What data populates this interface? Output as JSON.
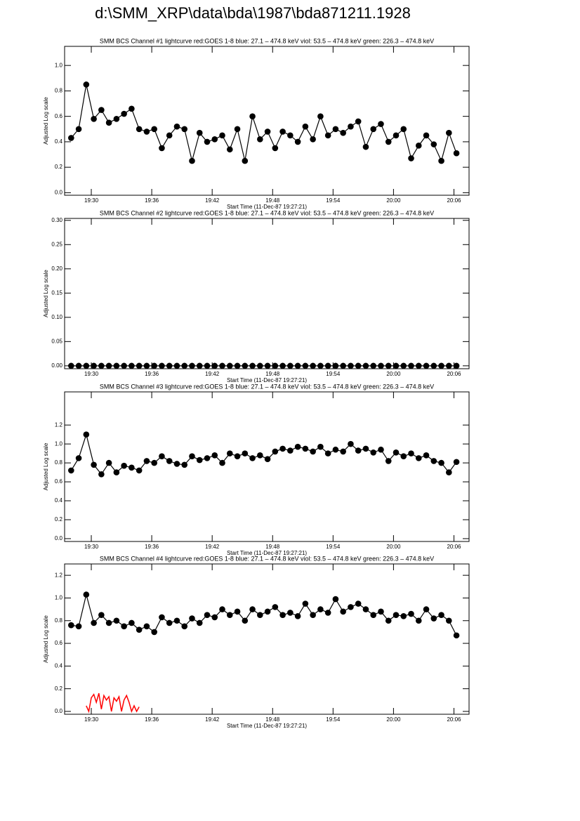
{
  "page_title": "d:\\SMM_XRP\\data\\bda\\1987\\bda871211.1928",
  "chart_data": [
    {
      "type": "line",
      "title": "SMM BCS Channel #1 lightcurve  red:GOES 1-8  blue: 27.1 – 474.8 keV  viol: 53.5 – 474.8 keV  green: 226.3 – 474.8 keV",
      "x_label": "Start Time (11-Dec-87 19:27:21)",
      "y_label": "Adjusted Log scale",
      "xlim": [
        27.35,
        67.5
      ],
      "xticks": [
        {
          "value": 30,
          "label": "19:30"
        },
        {
          "value": 36,
          "label": "19:36"
        },
        {
          "value": 42,
          "label": "19:42"
        },
        {
          "value": 48,
          "label": "19:48"
        },
        {
          "value": 54,
          "label": "19:54"
        },
        {
          "value": 60,
          "label": "20:00"
        },
        {
          "value": 66,
          "label": "20:06"
        }
      ],
      "ylim": [
        -0.02,
        1.15
      ],
      "yticks": [
        {
          "value": 0,
          "label": "0.0"
        },
        {
          "value": 0.2,
          "label": "0.2"
        },
        {
          "value": 0.4,
          "label": "0.4"
        },
        {
          "value": 0.6,
          "label": "0.6"
        },
        {
          "value": 0.8,
          "label": "0.8"
        },
        {
          "value": 1,
          "label": "1.0"
        }
      ],
      "x": [
        28,
        28.75,
        29.5,
        30.25,
        31,
        31.75,
        32.5,
        33.25,
        34,
        34.75,
        35.5,
        36.25,
        37,
        37.75,
        38.5,
        39.25,
        40,
        40.75,
        41.5,
        42.25,
        43,
        43.75,
        44.5,
        45.25,
        46,
        46.75,
        47.5,
        48.25,
        49,
        49.75,
        50.5,
        51.25,
        52,
        52.75,
        53.5,
        54.25,
        55,
        55.75,
        56.5,
        57.25,
        58,
        58.75,
        59.5,
        60.25,
        61,
        61.75,
        62.5,
        63.25,
        64,
        64.75,
        65.5,
        66.25
      ],
      "series": [
        {
          "color": "#000000",
          "values": [
            0.43,
            0.5,
            0.85,
            0.58,
            0.65,
            0.55,
            0.58,
            0.62,
            0.66,
            0.5,
            0.48,
            0.5,
            0.35,
            0.45,
            0.52,
            0.5,
            0.25,
            0.47,
            0.4,
            0.42,
            0.45,
            0.34,
            0.5,
            0.25,
            0.6,
            0.42,
            0.48,
            0.35,
            0.48,
            0.45,
            0.4,
            0.52,
            0.42,
            0.6,
            0.45,
            0.5,
            0.47,
            0.52,
            0.56,
            0.36,
            0.5,
            0.54,
            0.4,
            0.45,
            0.5,
            0.27,
            0.37,
            0.45,
            0.38,
            0.25,
            0.47,
            0.31
          ]
        }
      ]
    },
    {
      "type": "line",
      "title": "SMM BCS Channel #2 lightcurve  red:GOES 1-8  blue: 27.1 – 474.8 keV  viol: 53.5 – 474.8 keV  green: 226.3 – 474.8 keV",
      "x_label": "Start Time (11-Dec-87 19:27:21)",
      "y_label": "Adjusted Log scale",
      "xlim": [
        27.35,
        67.5
      ],
      "xticks": [
        {
          "value": 30,
          "label": "19:30"
        },
        {
          "value": 36,
          "label": "19:36"
        },
        {
          "value": 42,
          "label": "19:42"
        },
        {
          "value": 48,
          "label": "19:48"
        },
        {
          "value": 54,
          "label": "19:54"
        },
        {
          "value": 60,
          "label": "20:00"
        },
        {
          "value": 66,
          "label": "20:06"
        }
      ],
      "ylim": [
        -0.006,
        0.304
      ],
      "yticks": [
        {
          "value": 0,
          "label": "0.00"
        },
        {
          "value": 0.05,
          "label": "0.05"
        },
        {
          "value": 0.1,
          "label": "0.10"
        },
        {
          "value": 0.15,
          "label": "0.15"
        },
        {
          "value": 0.2,
          "label": "0.20"
        },
        {
          "value": 0.25,
          "label": "0.25"
        },
        {
          "value": 0.3,
          "label": "0.30"
        }
      ],
      "x": [
        28,
        28.75,
        29.5,
        30.25,
        31,
        31.75,
        32.5,
        33.25,
        34,
        34.75,
        35.5,
        36.25,
        37,
        37.75,
        38.5,
        39.25,
        40,
        40.75,
        41.5,
        42.25,
        43,
        43.75,
        44.5,
        45.25,
        46,
        46.75,
        47.5,
        48.25,
        49,
        49.75,
        50.5,
        51.25,
        52,
        52.75,
        53.5,
        54.25,
        55,
        55.75,
        56.5,
        57.25,
        58,
        58.75,
        59.5,
        60.25,
        61,
        61.75,
        62.5,
        63.25,
        64,
        64.75,
        65.5,
        66.25
      ],
      "series": [
        {
          "color": "#000000",
          "values": [
            0,
            0,
            0,
            0,
            0,
            0,
            0,
            0,
            0,
            0,
            0,
            0,
            0,
            0,
            0,
            0,
            0,
            0,
            0,
            0,
            0,
            0,
            0,
            0,
            0,
            0,
            0,
            0,
            0,
            0,
            0,
            0,
            0,
            0,
            0,
            0,
            0,
            0,
            0,
            0,
            0,
            0,
            0,
            0,
            0,
            0,
            0,
            0,
            0,
            0,
            0,
            0
          ]
        }
      ]
    },
    {
      "type": "line",
      "title": "SMM BCS Channel #3 lightcurve  red:GOES 1-8  blue: 27.1 – 474.8 keV  viol: 53.5 – 474.8 keV  green: 226.3 – 474.8 keV",
      "x_label": "Start Time (11-Dec-87 19:27:21)",
      "y_label": "Adjusted Log scale",
      "xlim": [
        27.35,
        67.5
      ],
      "xticks": [
        {
          "value": 30,
          "label": "19:30"
        },
        {
          "value": 36,
          "label": "19:36"
        },
        {
          "value": 42,
          "label": "19:42"
        },
        {
          "value": 48,
          "label": "19:48"
        },
        {
          "value": 54,
          "label": "19:54"
        },
        {
          "value": 60,
          "label": "20:00"
        },
        {
          "value": 66,
          "label": "20:06"
        }
      ],
      "ylim": [
        -0.03,
        1.55
      ],
      "yticks": [
        {
          "value": 0,
          "label": "0.0"
        },
        {
          "value": 0.2,
          "label": "0.2"
        },
        {
          "value": 0.4,
          "label": "0.4"
        },
        {
          "value": 0.6,
          "label": "0.6"
        },
        {
          "value": 0.8,
          "label": "0.8"
        },
        {
          "value": 1,
          "label": "1.0"
        },
        {
          "value": 1.2,
          "label": "1.2"
        }
      ],
      "x": [
        28,
        28.75,
        29.5,
        30.25,
        31,
        31.75,
        32.5,
        33.25,
        34,
        34.75,
        35.5,
        36.25,
        37,
        37.75,
        38.5,
        39.25,
        40,
        40.75,
        41.5,
        42.25,
        43,
        43.75,
        44.5,
        45.25,
        46,
        46.75,
        47.5,
        48.25,
        49,
        49.75,
        50.5,
        51.25,
        52,
        52.75,
        53.5,
        54.25,
        55,
        55.75,
        56.5,
        57.25,
        58,
        58.75,
        59.5,
        60.25,
        61,
        61.75,
        62.5,
        63.25,
        64,
        64.75,
        65.5,
        66.25
      ],
      "series": [
        {
          "color": "#000000",
          "values": [
            0.72,
            0.85,
            1.1,
            0.78,
            0.68,
            0.8,
            0.7,
            0.77,
            0.75,
            0.72,
            0.82,
            0.8,
            0.87,
            0.82,
            0.79,
            0.78,
            0.87,
            0.83,
            0.85,
            0.88,
            0.8,
            0.9,
            0.87,
            0.9,
            0.85,
            0.88,
            0.84,
            0.92,
            0.95,
            0.93,
            0.97,
            0.95,
            0.92,
            0.97,
            0.9,
            0.94,
            0.92,
            1.0,
            0.93,
            0.95,
            0.91,
            0.94,
            0.82,
            0.91,
            0.87,
            0.9,
            0.85,
            0.88,
            0.82,
            0.8,
            0.7,
            0.81
          ]
        }
      ]
    },
    {
      "type": "line",
      "title": "SMM BCS Channel #4 lightcurve  red:GOES 1-8  blue: 27.1 – 474.8 keV  viol: 53.5 – 474.8 keV  green: 226.3 – 474.8 keV",
      "x_label": "Start Time (11-Dec-87 19:27:21)",
      "y_label": "Adjusted Log scale",
      "xlim": [
        27.35,
        67.5
      ],
      "xticks": [
        {
          "value": 30,
          "label": "19:30"
        },
        {
          "value": 36,
          "label": "19:36"
        },
        {
          "value": 42,
          "label": "19:42"
        },
        {
          "value": 48,
          "label": "19:48"
        },
        {
          "value": 54,
          "label": "19:54"
        },
        {
          "value": 60,
          "label": "20:00"
        },
        {
          "value": 66,
          "label": "20:06"
        }
      ],
      "ylim": [
        -0.025,
        1.3
      ],
      "yticks": [
        {
          "value": 0,
          "label": "0.0"
        },
        {
          "value": 0.2,
          "label": "0.2"
        },
        {
          "value": 0.4,
          "label": "0.4"
        },
        {
          "value": 0.6,
          "label": "0.6"
        },
        {
          "value": 0.8,
          "label": "0.8"
        },
        {
          "value": 1,
          "label": "1.0"
        },
        {
          "value": 1.2,
          "label": "1.2"
        }
      ],
      "x": [
        28,
        28.75,
        29.5,
        30.25,
        31,
        31.75,
        32.5,
        33.25,
        34,
        34.75,
        35.5,
        36.25,
        37,
        37.75,
        38.5,
        39.25,
        40,
        40.75,
        41.5,
        42.25,
        43,
        43.75,
        44.5,
        45.25,
        46,
        46.75,
        47.5,
        48.25,
        49,
        49.75,
        50.5,
        51.25,
        52,
        52.75,
        53.5,
        54.25,
        55,
        55.75,
        56.5,
        57.25,
        58,
        58.75,
        59.5,
        60.25,
        61,
        61.75,
        62.5,
        63.25,
        64,
        64.75,
        65.5,
        66.25
      ],
      "series": [
        {
          "color": "#000000",
          "values": [
            0.76,
            0.75,
            1.03,
            0.78,
            0.85,
            0.78,
            0.8,
            0.75,
            0.78,
            0.72,
            0.75,
            0.7,
            0.83,
            0.78,
            0.8,
            0.75,
            0.82,
            0.78,
            0.85,
            0.83,
            0.9,
            0.85,
            0.88,
            0.8,
            0.9,
            0.85,
            0.88,
            0.92,
            0.85,
            0.87,
            0.84,
            0.95,
            0.85,
            0.9,
            0.87,
            0.99,
            0.88,
            0.92,
            0.95,
            0.9,
            0.85,
            0.88,
            0.8,
            0.85,
            0.84,
            0.86,
            0.8,
            0.9,
            0.82,
            0.85,
            0.8,
            0.67
          ]
        },
        {
          "color": "#ff0000",
          "markers": false,
          "x": [
            29.5,
            29.75,
            30,
            30.25,
            30.5,
            30.75,
            31,
            31.25,
            31.5,
            31.75,
            32,
            32.25,
            32.5,
            32.75,
            33,
            33.25,
            33.5,
            33.75,
            34,
            34.25,
            34.5,
            34.75
          ],
          "values": [
            0.05,
            0,
            0.12,
            0.15,
            0.08,
            0.16,
            0.02,
            0.14,
            0.1,
            0.13,
            0,
            0.12,
            0.09,
            0.13,
            0,
            0.1,
            0.14,
            0.08,
            0,
            0.05,
            0,
            0.04
          ]
        }
      ]
    }
  ]
}
